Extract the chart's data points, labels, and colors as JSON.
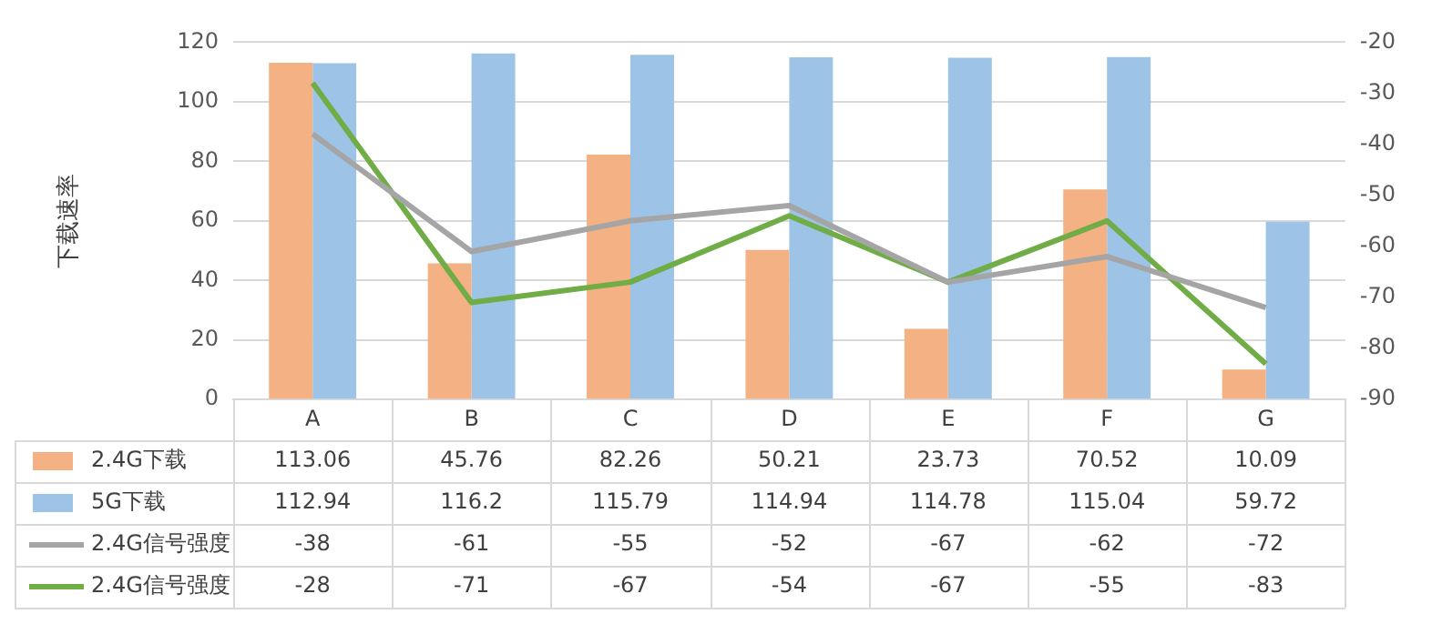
{
  "chart_data": {
    "type": "bar",
    "ylabel": "下载速率",
    "categories": [
      "A",
      "B",
      "C",
      "D",
      "E",
      "F",
      "G"
    ],
    "series": [
      {
        "name": "2.4G下载",
        "color": "#f4b183",
        "values": [
          113.06,
          45.76,
          82.26,
          50.21,
          23.73,
          70.52,
          10.09
        ]
      },
      {
        "name": "5G下载",
        "color": "#9dc3e6",
        "values": [
          112.94,
          116.2,
          115.79,
          114.94,
          114.78,
          115.04,
          59.72
        ]
      },
      {
        "name": "2.4G信号强度",
        "type": "line",
        "axis": "y2",
        "color": "#a5a5a5",
        "values": [
          -38,
          -61,
          -55,
          -52,
          -67,
          -62,
          -72
        ]
      },
      {
        "name": "2.4G信号强度",
        "type": "line",
        "axis": "y2",
        "color": "#70ad47",
        "values": [
          -28,
          -71,
          -67,
          -54,
          -67,
          -55,
          -83
        ]
      }
    ],
    "ylim": [
      0,
      120
    ],
    "yticks": [
      0,
      20,
      40,
      60,
      80,
      100,
      120
    ],
    "y2lim": [
      -90,
      -20
    ],
    "y2ticks": [
      -90,
      -80,
      -70,
      -60,
      -50,
      -40,
      -30,
      -20
    ],
    "grid": "y",
    "legend": "bottom",
    "data_labels": true,
    "marker": "none",
    "line_style": "solid"
  }
}
